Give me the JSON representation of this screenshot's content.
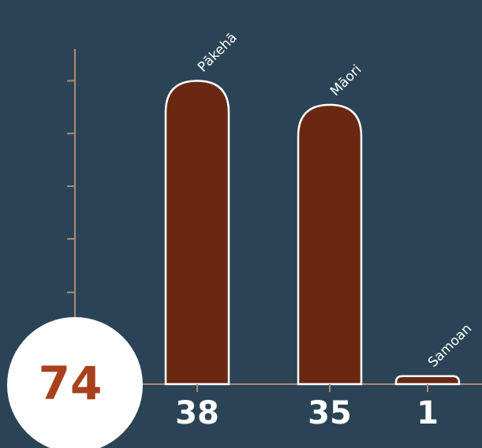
{
  "chart_data": {
    "type": "bar",
    "categories": [
      "Pākehā",
      "Māori",
      "Samoan"
    ],
    "values": [
      38,
      35,
      1
    ],
    "color": "#6a2812",
    "total": 74,
    "ylim": [
      0,
      42
    ],
    "yticks": [
      4.9,
      11.5,
      18.2,
      24.8,
      31.4,
      38
    ]
  }
}
